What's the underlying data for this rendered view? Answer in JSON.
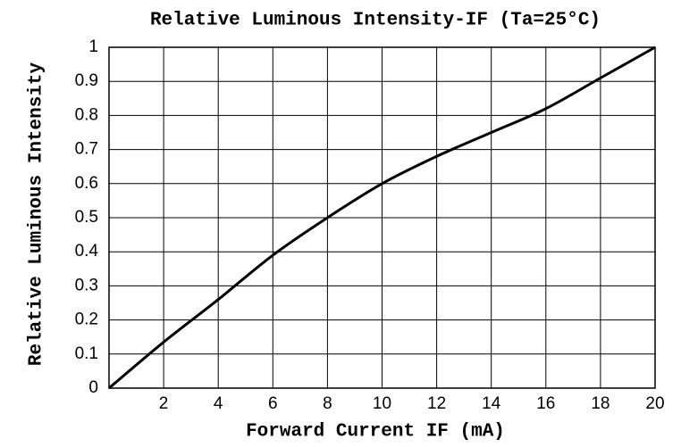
{
  "chart_data": {
    "type": "line",
    "title": "Relative Luminous Intensity-IF (Ta=25°C)",
    "x_label": "Forward Current IF (mA)",
    "y_label": "Relative Luminous Intensity",
    "x": [
      0,
      2,
      4,
      6,
      8,
      10,
      12,
      14,
      16,
      18,
      20
    ],
    "series": [
      {
        "name": "IF",
        "color": "#000000",
        "values": [
          0,
          0.135,
          0.26,
          0.39,
          0.5,
          0.6,
          0.68,
          0.75,
          0.82,
          0.91,
          1
        ]
      }
    ],
    "xlim": [
      0,
      20
    ],
    "xticks": [
      2,
      4,
      6,
      8,
      10,
      12,
      14,
      16,
      18,
      20
    ],
    "ylim": [
      0,
      1
    ],
    "yticks": [
      0,
      0.1,
      0.2,
      0.3,
      0.4,
      0.5,
      0.6,
      0.7,
      0.8,
      0.9,
      1
    ],
    "grid": true
  }
}
